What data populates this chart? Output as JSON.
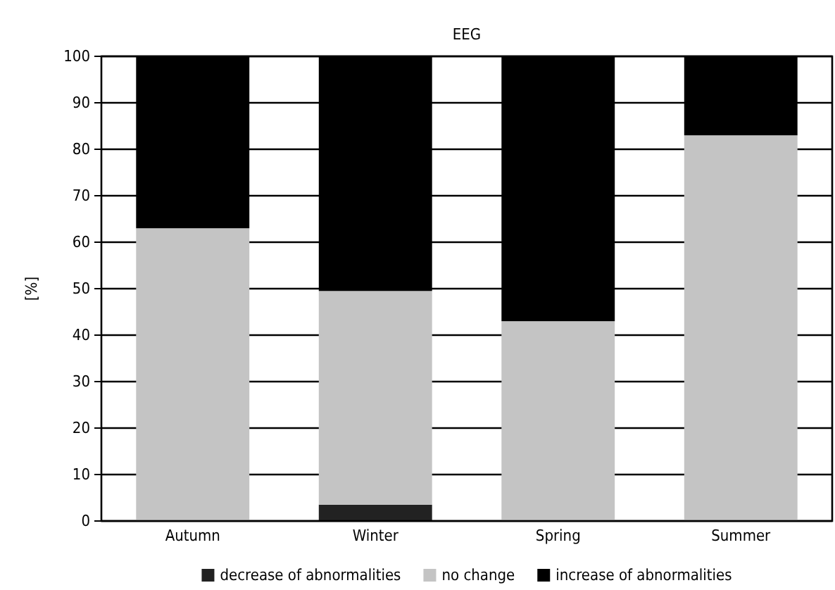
{
  "chart_data": {
    "type": "bar",
    "title": "EEG",
    "ylabel": "[%]",
    "categories": [
      "Autumn",
      "Winter",
      "Spring",
      "Summer"
    ],
    "stacked": true,
    "series": [
      {
        "name": "decrease of abnormalities",
        "color": "#222222",
        "values": [
          0,
          3.5,
          0,
          0
        ]
      },
      {
        "name": "no change",
        "color": "#c4c4c4",
        "values": [
          63,
          46,
          43,
          83
        ]
      },
      {
        "name": "increase of abnormalities",
        "color": "#000000",
        "values": [
          37,
          50.5,
          57,
          17
        ]
      }
    ],
    "ylim": [
      0,
      100
    ],
    "yticks": [
      0,
      10,
      20,
      30,
      40,
      50,
      60,
      70,
      80,
      90,
      100
    ],
    "grid": "y",
    "legend": "bottom"
  }
}
